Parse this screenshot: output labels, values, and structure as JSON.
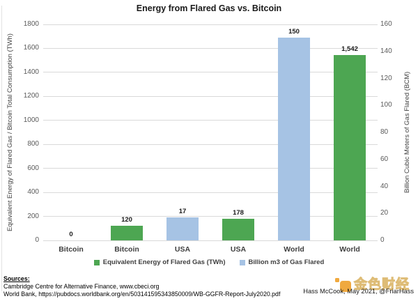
{
  "chart_data": {
    "type": "bar",
    "title": "Energy from Flared Gas vs. Bitcoin",
    "categories": [
      "Bitcoin",
      "Bitcoin",
      "USA",
      "USA",
      "World",
      "World"
    ],
    "bars": [
      {
        "category": "Bitcoin",
        "value": 0,
        "label": "0",
        "series": "Equivalent Energy of Flared Gas (TWh)",
        "axis": "left",
        "color_key": "green"
      },
      {
        "category": "Bitcoin",
        "value": 120,
        "label": "120",
        "series": "Equivalent Energy of Flared Gas (TWh)",
        "axis": "left",
        "color_key": "green"
      },
      {
        "category": "USA",
        "value": 17,
        "label": "17",
        "series": "Billion m3 of Gas Flared",
        "axis": "right",
        "color_key": "blue"
      },
      {
        "category": "USA",
        "value": 178,
        "label": "178",
        "series": "Equivalent Energy of Flared Gas (TWh)",
        "axis": "left",
        "color_key": "green"
      },
      {
        "category": "World",
        "value": 150,
        "label": "150",
        "series": "Billion m3 of Gas Flared",
        "axis": "right",
        "color_key": "blue"
      },
      {
        "category": "World",
        "value": 1542,
        "label": "1,542",
        "series": "Equivalent Energy of Flared Gas (TWh)",
        "axis": "left",
        "color_key": "green"
      }
    ],
    "left_axis": {
      "label": "Equivalent Energy of Flared Gas / Bitcoin Total Consumption (TWh)",
      "min": 0,
      "max": 1800,
      "tick_step": 200,
      "ticks": [
        0,
        200,
        400,
        600,
        800,
        1000,
        1200,
        1400,
        1600,
        1800
      ]
    },
    "right_axis": {
      "label": "Billion Cubic Meters of Gas Flared (BCM)",
      "min": 0,
      "max": 160,
      "tick_step": 20,
      "ticks": [
        0,
        20,
        40,
        60,
        80,
        100,
        120,
        140,
        160
      ]
    },
    "legend": [
      {
        "label": "Equivalent Energy of Flared Gas (TWh)",
        "color_key": "green"
      },
      {
        "label": "Billion m3 of Gas Flared",
        "color_key": "blue"
      }
    ],
    "colors": {
      "green": "#4da652",
      "blue": "#a6c3e4",
      "gridline": "#d9d9d9"
    },
    "grid": true,
    "legend_position": "bottom"
  },
  "footer": {
    "sources_heading": "Sources:",
    "source_lines": [
      "Cambridge Centre for Alternative Finance, www.cbeci.org",
      "World Bank, https://pubdocs.worldbank.org/en/503141595343850009/WB-GGFR-Report-July2020.pdf"
    ],
    "attribution": "Hass McCook, May 2021, @FriarHass",
    "logo_text": "金色财经"
  }
}
